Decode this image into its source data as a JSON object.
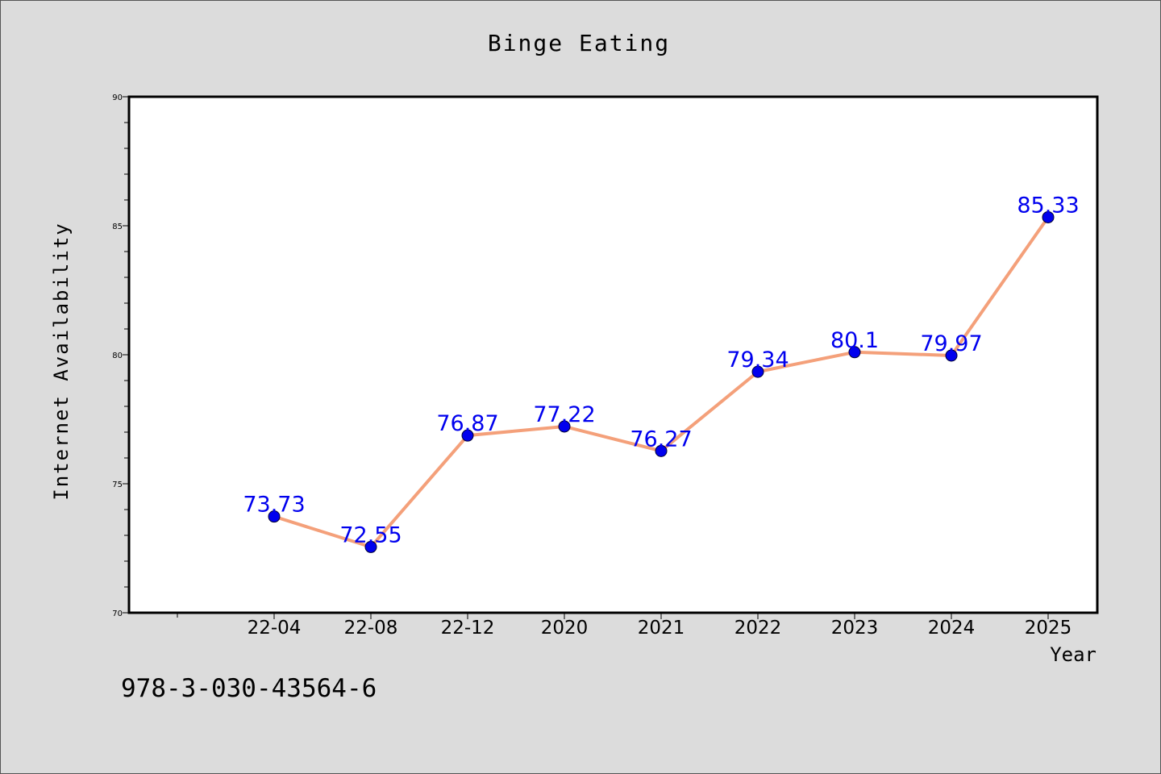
{
  "chart_data": {
    "type": "line",
    "title": "Binge Eating",
    "xlabel": "Year",
    "ylabel": "Internet Availability",
    "categories": [
      "22-04",
      "22-08",
      "22-12",
      "2020",
      "2021",
      "2022",
      "2023",
      "2024",
      "2025"
    ],
    "series": [
      {
        "values": [
          73.73,
          72.55,
          76.87,
          77.22,
          76.27,
          79.34,
          80.1,
          79.97,
          85.33
        ]
      }
    ],
    "data_labels": [
      "73.73",
      "72.55",
      "76.87",
      "77.22",
      "76.27",
      "79.34",
      "80.1",
      "79.97",
      "85.33"
    ],
    "ylim": [
      70,
      90
    ],
    "yticks": [
      70,
      75,
      80,
      85,
      90
    ],
    "grid": false,
    "legend": "none",
    "line_color": "#f4a07a",
    "marker_color": "#0000ee",
    "label_color": "#0000ee"
  },
  "footer_text": "978-3-030-43564-6"
}
